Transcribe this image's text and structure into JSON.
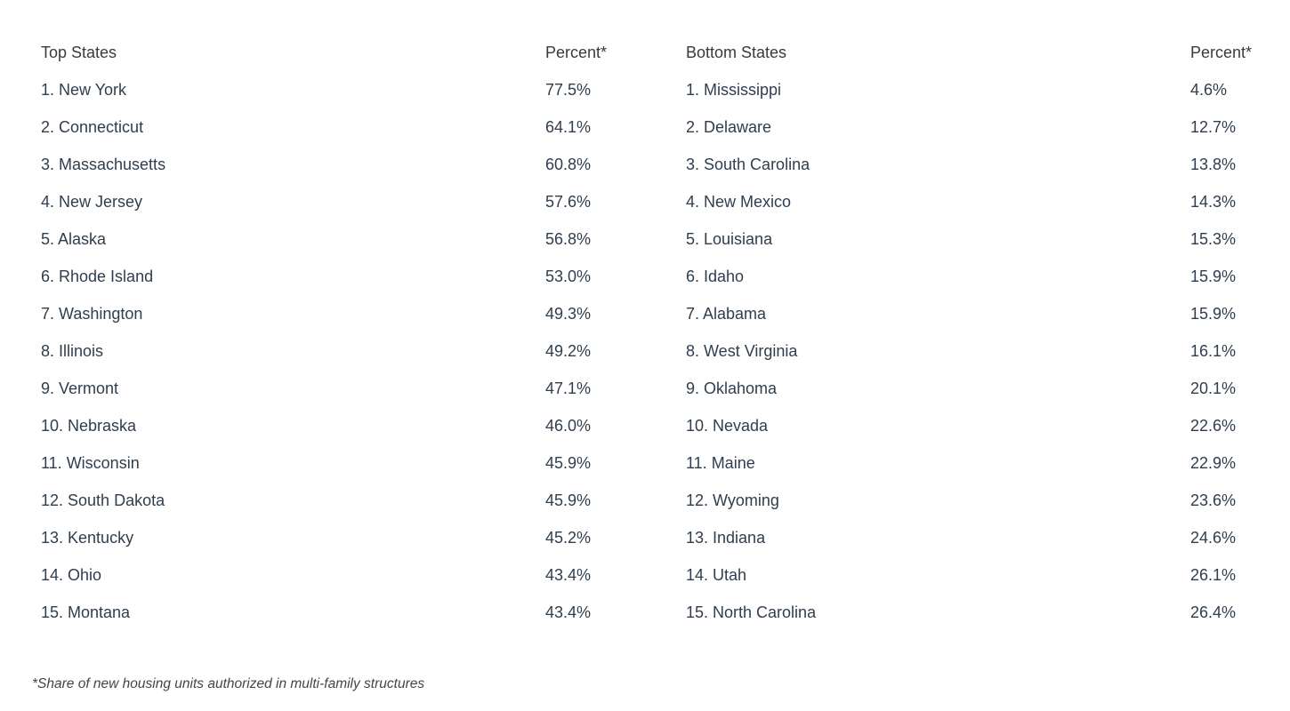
{
  "chart_data": {
    "type": "table",
    "title": "",
    "footnote": "*Share of new housing units authorized in multi-family structures",
    "value_description": "Share of new housing units authorized in multi-family structures (%)",
    "tables": [
      {
        "name_header": "Top States",
        "percent_header": "Percent*",
        "rows": [
          {
            "rank": 1,
            "state": "New York",
            "percent": "77.5%",
            "value": 77.5
          },
          {
            "rank": 2,
            "state": "Connecticut",
            "percent": "64.1%",
            "value": 64.1
          },
          {
            "rank": 3,
            "state": "Massachusetts",
            "percent": "60.8%",
            "value": 60.8
          },
          {
            "rank": 4,
            "state": "New Jersey",
            "percent": "57.6%",
            "value": 57.6
          },
          {
            "rank": 5,
            "state": "Alaska",
            "percent": "56.8%",
            "value": 56.8
          },
          {
            "rank": 6,
            "state": "Rhode Island",
            "percent": "53.0%",
            "value": 53.0
          },
          {
            "rank": 7,
            "state": "Washington",
            "percent": "49.3%",
            "value": 49.3
          },
          {
            "rank": 8,
            "state": "Illinois",
            "percent": "49.2%",
            "value": 49.2
          },
          {
            "rank": 9,
            "state": "Vermont",
            "percent": "47.1%",
            "value": 47.1
          },
          {
            "rank": 10,
            "state": "Nebraska",
            "percent": "46.0%",
            "value": 46.0
          },
          {
            "rank": 11,
            "state": "Wisconsin",
            "percent": "45.9%",
            "value": 45.9
          },
          {
            "rank": 12,
            "state": "South Dakota",
            "percent": "45.9%",
            "value": 45.9
          },
          {
            "rank": 13,
            "state": "Kentucky",
            "percent": "45.2%",
            "value": 45.2
          },
          {
            "rank": 14,
            "state": "Ohio",
            "percent": "43.4%",
            "value": 43.4
          },
          {
            "rank": 15,
            "state": "Montana",
            "percent": "43.4%",
            "value": 43.4
          }
        ]
      },
      {
        "name_header": "Bottom States",
        "percent_header": "Percent*",
        "rows": [
          {
            "rank": 1,
            "state": "Mississippi",
            "percent": "4.6%",
            "value": 4.6
          },
          {
            "rank": 2,
            "state": "Delaware",
            "percent": "12.7%",
            "value": 12.7
          },
          {
            "rank": 3,
            "state": "South Carolina",
            "percent": "13.8%",
            "value": 13.8
          },
          {
            "rank": 4,
            "state": "New Mexico",
            "percent": "14.3%",
            "value": 14.3
          },
          {
            "rank": 5,
            "state": "Louisiana",
            "percent": "15.3%",
            "value": 15.3
          },
          {
            "rank": 6,
            "state": "Idaho",
            "percent": "15.9%",
            "value": 15.9
          },
          {
            "rank": 7,
            "state": "Alabama",
            "percent": "15.9%",
            "value": 15.9
          },
          {
            "rank": 8,
            "state": "West Virginia",
            "percent": "16.1%",
            "value": 16.1
          },
          {
            "rank": 9,
            "state": "Oklahoma",
            "percent": "20.1%",
            "value": 20.1
          },
          {
            "rank": 10,
            "state": "Nevada",
            "percent": "22.6%",
            "value": 22.6
          },
          {
            "rank": 11,
            "state": "Maine",
            "percent": "22.9%",
            "value": 22.9
          },
          {
            "rank": 12,
            "state": "Wyoming",
            "percent": "23.6%",
            "value": 23.6
          },
          {
            "rank": 13,
            "state": "Indiana",
            "percent": "24.6%",
            "value": 24.6
          },
          {
            "rank": 14,
            "state": "Utah",
            "percent": "26.1%",
            "value": 26.1
          },
          {
            "rank": 15,
            "state": "North Carolina",
            "percent": "26.4%",
            "value": 26.4
          }
        ]
      }
    ]
  },
  "colors": {
    "background": "#ffffff",
    "row_text": "#2f3e4f",
    "header_text": "#3a3a3a",
    "footnote_text": "#454545"
  }
}
